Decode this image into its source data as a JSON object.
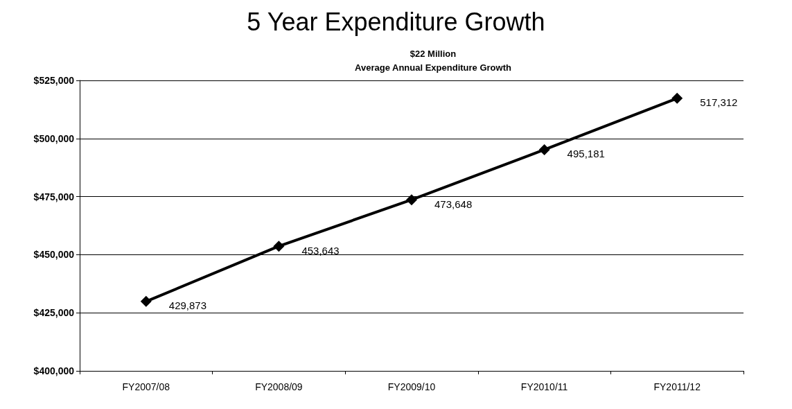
{
  "chart_data": {
    "type": "line",
    "title": "5 Year Expenditure Growth",
    "subtitle": "$22 Million\nAverage Annual Expenditure Growth",
    "categories": [
      "FY2007/08",
      "FY2008/09",
      "FY2009/10",
      "FY2010/11",
      "FY2011/12"
    ],
    "series": [
      {
        "color": "#000000",
        "values": [
          429873,
          453643,
          473648,
          495181,
          517312
        ],
        "value_labels": [
          "429,873",
          "453,643",
          "473,648",
          "495,181",
          "517,312"
        ]
      }
    ],
    "ylim": [
      400000,
      525000
    ],
    "yticks": [
      {
        "value": 400000,
        "label": "$400,000"
      },
      {
        "value": 425000,
        "label": "$425,000"
      },
      {
        "value": 450000,
        "label": "$450,000"
      },
      {
        "value": 475000,
        "label": "$475,000"
      },
      {
        "value": 500000,
        "label": "$500,000"
      },
      {
        "value": 525000,
        "label": "$525,000"
      }
    ],
    "grid": "y",
    "marker": "diamond",
    "line_style": "solid"
  }
}
